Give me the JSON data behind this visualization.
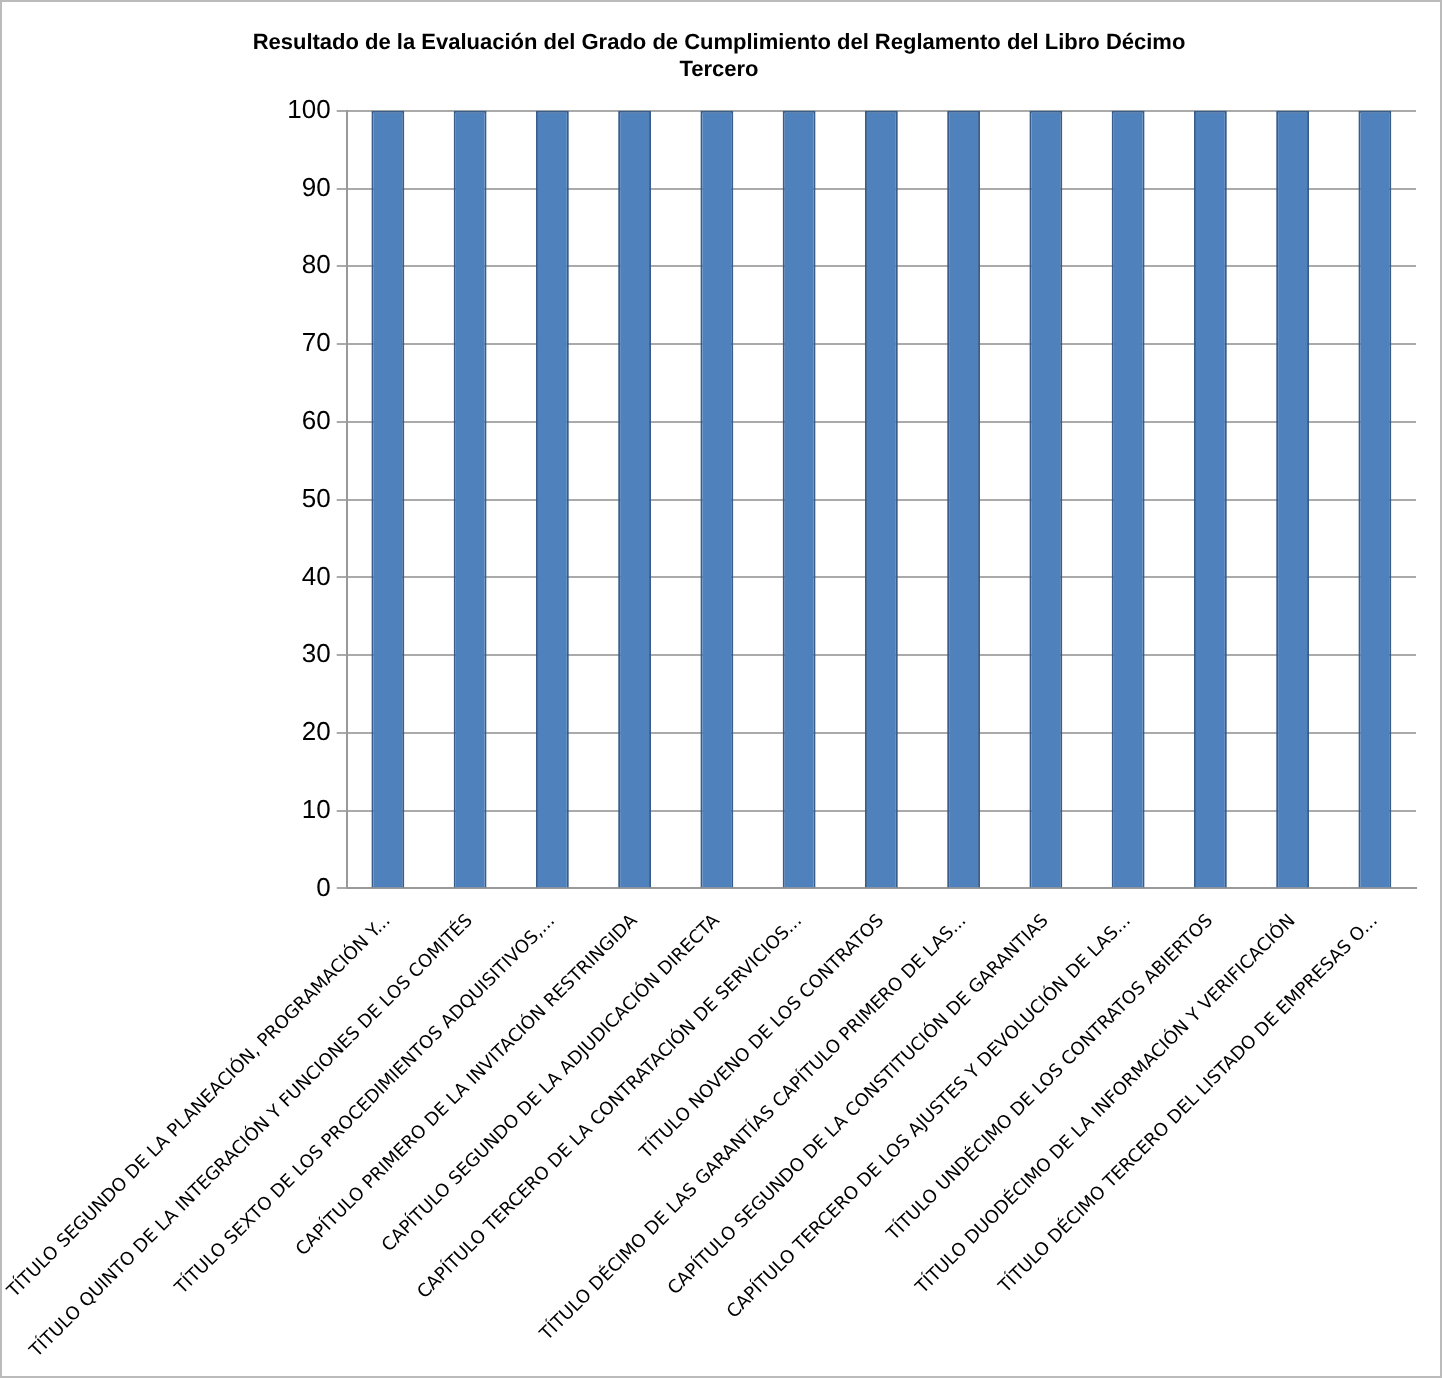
{
  "chart_data": {
    "type": "bar",
    "title": "Resultado de la Evaluación del Grado de Cumplimiento del Reglamento del Libro Décimo Tercero",
    "categories": [
      "TÍTULO SEGUNDO DE LA PLANEACIÓN, PROGRAMACIÓN Y...",
      "TÍTULO QUINTO DE LA INTEGRACIÓN Y FUNCIONES DE LOS COMITÉS",
      "TÍTULO SEXTO DE LOS PROCEDIMIENTOS ADQUISITIVOS,...",
      "CAPÍTULO PRIMERO DE LA INVITACIÓN RESTRINGIDA",
      "CAPÍTULO SEGUNDO DE LA ADJUDICACIÓN DIRECTA",
      "CAPÍTULO TERCERO DE LA CONTRATACIÓN DE SERVICIOS...",
      "TÍTULO NOVENO DE LOS CONTRATOS",
      "TÍTULO DÉCIMO DE LAS GARANTÍAS CAPÍTULO PRIMERO DE LAS...",
      "CAPÍTULO SEGUNDO DE LA CONSTITUCIÓN DE GARANTIAS",
      "CAPÍTULO TERCERO DE LOS AJUSTES Y DEVOLUCIÓN DE LAS...",
      "TÍTULO UNDÉCIMO DE LOS CONTRATOS ABIERTOS",
      "TÍTULO DUODÉCIMO DE LA INFORMACIÓN Y VERIFICACIÓN",
      "TÍTULO DÉCIMO TERCERO DEL LISTADO DE EMPRESAS O..."
    ],
    "values": [
      100,
      100,
      100,
      100,
      100,
      100,
      100,
      100,
      100,
      100,
      100,
      100,
      100
    ],
    "color": "#4f81bd",
    "ylim": [
      0,
      100
    ],
    "yticks": [
      0,
      10,
      20,
      30,
      40,
      50,
      60,
      70,
      80,
      90,
      100
    ],
    "grid": "y",
    "legend": false
  }
}
